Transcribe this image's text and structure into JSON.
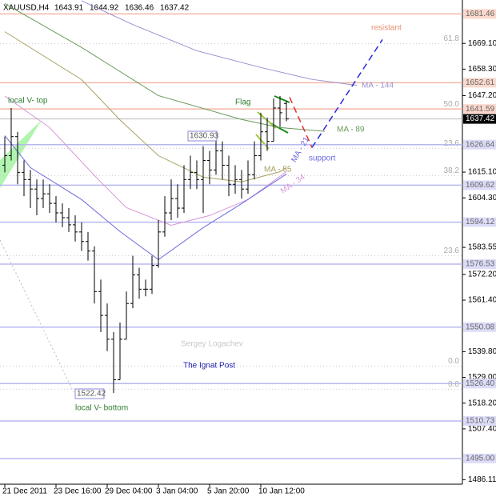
{
  "chart_data": {
    "type": "ohlc",
    "title": "XAUUSD,H4",
    "ylim": [
      1484.2,
      1687.3
    ],
    "yticks": [
      {
        "value": 1669.1,
        "label": "1669.10"
      },
      {
        "value": 1658.3,
        "label": "1658.30"
      },
      {
        "value": 1647.2,
        "label": "1647.20"
      },
      {
        "value": 1615.1,
        "label": "1615.10"
      },
      {
        "value": 1604.3,
        "label": "1604.30"
      },
      1583.55,
      {
        "value": 1572.2,
        "label": "1572.20"
      },
      {
        "value": 1561.4,
        "label": "1561.40"
      },
      {
        "value": 1539.8,
        "label": "1539.80"
      },
      {
        "value": 1529,
        "label": "1529.00"
      },
      {
        "value": 1518.2,
        "label": "1518.20"
      },
      {
        "value": 1507.4,
        "label": "1507.40"
      },
      1486.11
    ],
    "xticks": [
      {
        "value": 0,
        "label": "21 Dec 2011"
      },
      {
        "value": 8,
        "label": "23 Dec 16:00"
      },
      {
        "value": 16,
        "label": "29 Dec 04:00"
      },
      {
        "value": 24,
        "label": "3 Jan 04:00"
      },
      {
        "value": 32,
        "label": "5 Jan 20:00"
      },
      {
        "value": 40,
        "label": "10 Jan 12:00"
      }
    ],
    "bar_color": "#000000",
    "open": [
      1618,
      1622,
      1630,
      1615,
      1612,
      1608,
      1604,
      1606,
      1602,
      1598,
      1596,
      1593,
      1590,
      1586,
      1582,
      1565,
      1555,
      1545,
      1528,
      1545,
      1560,
      1572,
      1566,
      1566,
      1576,
      1590,
      1598,
      1604,
      1600,
      1612,
      1615,
      1612,
      1620,
      1616,
      1624,
      1618,
      1610,
      1612,
      1608,
      1614,
      1622,
      1632,
      1628,
      1642,
      1643.91
    ],
    "high": [
      1630,
      1642,
      1632,
      1620,
      1616,
      1612,
      1612,
      1610,
      1605,
      1602,
      1600,
      1597,
      1594,
      1590,
      1584,
      1570,
      1560,
      1548,
      1552,
      1565,
      1580,
      1575,
      1570,
      1580,
      1595,
      1605,
      1612,
      1610,
      1618,
      1622,
      1620,
      1626,
      1624,
      1630.93,
      1628,
      1622,
      1618,
      1616,
      1620,
      1628,
      1640,
      1638,
      1646,
      1647,
      1644.92
    ],
    "low": [
      1615,
      1620,
      1610,
      1605,
      1600,
      1597,
      1600,
      1598,
      1594,
      1592,
      1590,
      1586,
      1582,
      1578,
      1560,
      1548,
      1540,
      1522.42,
      1528,
      1545,
      1558,
      1562,
      1563,
      1564,
      1575,
      1588,
      1595,
      1596,
      1598,
      1608,
      1608,
      1598,
      1610,
      1614,
      1612,
      1605,
      1606,
      1604,
      1606,
      1612,
      1620,
      1624,
      1628,
      1634,
      1636.46
    ],
    "close": [
      1622,
      1630,
      1615,
      1612,
      1608,
      1604,
      1606,
      1602,
      1598,
      1596,
      1593,
      1590,
      1586,
      1582,
      1565,
      1555,
      1545,
      1528,
      1545,
      1560,
      1572,
      1566,
      1566,
      1576,
      1590,
      1598,
      1604,
      1600,
      1612,
      1615,
      1612,
      1620,
      1616,
      1624,
      1618,
      1610,
      1612,
      1608,
      1614,
      1622,
      1632,
      1628,
      1642,
      1640,
      1637.42
    ],
    "series": [
      {
        "name": "MA - 144",
        "color": "#9a8fd0",
        "x": [
          12,
          20,
          30,
          40,
          48,
          55
        ],
        "values": [
          1687,
          1677,
          1666,
          1659,
          1654,
          1651.5
        ]
      },
      {
        "name": "MA - 89",
        "color": "#6a9a5a",
        "x": [
          0,
          12,
          24,
          37,
          43,
          50
        ],
        "values": [
          1685.8,
          1667.4,
          1647.2,
          1637.2,
          1633.8,
          1632.2
        ]
      },
      {
        "name": "MA - 55",
        "color": "#a8a060",
        "x": [
          0,
          12,
          18,
          24,
          31,
          37,
          43,
          44
        ],
        "values": [
          1674,
          1653.9,
          1637,
          1622,
          1613,
          1611,
          1615.3,
          1617
        ]
      },
      {
        "name": "MA - 34",
        "color": "#d898d8",
        "x": [
          0,
          7,
          14,
          19,
          26,
          32,
          38,
          44
        ],
        "values": [
          1647,
          1633.8,
          1613.7,
          1600.2,
          1592.8,
          1596.9,
          1603.6,
          1615.3
        ]
      },
      {
        "name": "MA - 21",
        "color": "#6a6ae0",
        "x": [
          0,
          4,
          12,
          18,
          24,
          31,
          37,
          44
        ],
        "values": [
          1630.4,
          1617,
          1603.6,
          1590.2,
          1578.4,
          1591.8,
          1601.9,
          1614.3
        ]
      }
    ],
    "forecast": [
      {
        "color": "#e03030",
        "x": [
          44.5,
          48
        ],
        "values": [
          1646.5,
          1625.4
        ]
      },
      {
        "color": "#2a2ad8",
        "x": [
          48,
          59
        ],
        "values": [
          1625.4,
          1670.7
        ]
      }
    ],
    "levels": [
      {
        "value": 1681.46,
        "color": "#f4b8a8"
      },
      {
        "value": 1652.61,
        "color": "#f4b8a8"
      },
      {
        "value": 1641.59,
        "color": "#f4b8a8"
      },
      {
        "value": 1626.64,
        "color": "#b8b8f0"
      },
      {
        "value": 1609.62,
        "color": "#b8b8f0"
      },
      {
        "value": 1594.12,
        "color": "#b8b8f0"
      },
      {
        "value": 1576.53,
        "color": "#b8b8f0"
      },
      {
        "value": 1550.08,
        "color": "#b8b8f0"
      },
      {
        "value": {
          "value": 1526.4,
          "label": "1526.40"
        },
        "color": "#b8b8f0"
      },
      {
        "value": 1510.73,
        "color": "#b8b8f0"
      },
      {
        "value": {
          "value": 1495,
          "label": "1495.00"
        },
        "color": "#b8b8f0"
      }
    ],
    "fib_levels": [
      {
        "value": 1669.04,
        "label": "61.8"
      },
      {
        "value": 1641.52,
        "label": "50.0"
      },
      {
        "value": 1625.07,
        "label": "23.6"
      },
      {
        "value": 1613.65,
        "label": "38.2"
      },
      {
        "value": 1580.09,
        "label": "23.6"
      },
      {
        "value": 1533.76,
        "label": "0.0"
      },
      {
        "value": 1524.03,
        "label": "0.0"
      }
    ],
    "annotations": [
      {
        "text": "local V- top",
        "color": "#2e7d2e"
      },
      {
        "text": "Flag",
        "color": "#2e7d2e"
      },
      {
        "text": "resistant",
        "color": "#e8906e"
      },
      {
        "text": "support",
        "color": "#6a6ae0"
      },
      {
        "text": "local V- bottom",
        "color": "#2e7d2e"
      },
      {
        "text": "Sergey Logachev",
        "color": "#c8c8c8"
      },
      {
        "text": "The Ignat Post",
        "color": "#1a1ab0"
      }
    ]
  }
}
